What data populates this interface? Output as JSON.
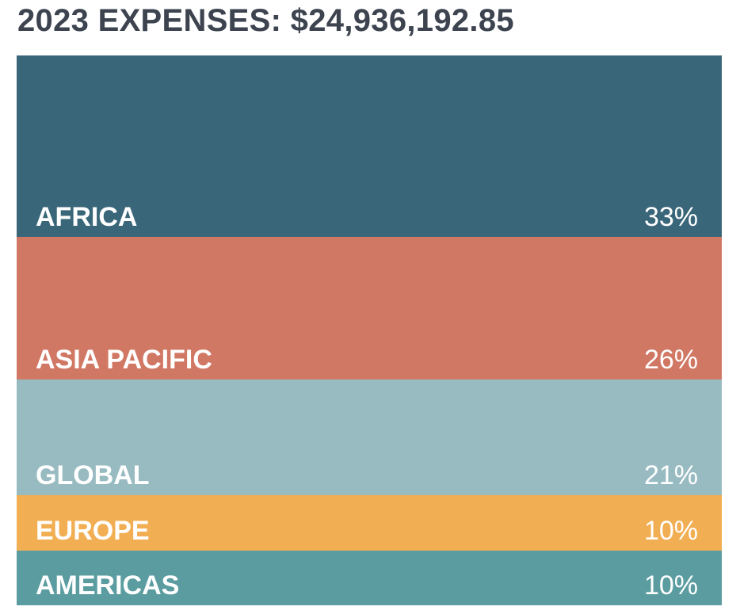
{
  "title": "2023 EXPENSES: $24,936,192.85",
  "chart_data": {
    "type": "bar",
    "orientation": "stacked-vertical-single-bar",
    "title": "2023 EXPENSES: $24,936,192.85",
    "categories": [
      "AFRICA",
      "ASIA PACIFIC",
      "GLOBAL",
      "EUROPE",
      "AMERICAS"
    ],
    "values": [
      33,
      26,
      21,
      10,
      10
    ],
    "value_labels": [
      "33%",
      "26%",
      "21%",
      "10%",
      "10%"
    ],
    "colors": [
      "#3a6679",
      "#d17865",
      "#98bbc1",
      "#f2ae52",
      "#5a9ca0"
    ],
    "xlabel": "",
    "ylabel": "",
    "grid": false,
    "legend": "none"
  }
}
